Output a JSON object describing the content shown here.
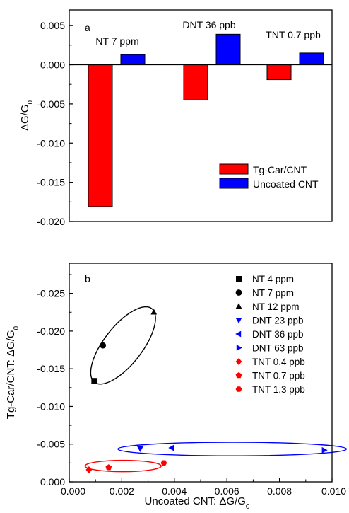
{
  "chart_data": [
    {
      "type": "bar",
      "panel_label": "a",
      "categories": [
        "NT 7 ppm",
        "DNT 36 ppb",
        "TNT 0.7 ppb"
      ],
      "series": [
        {
          "name": "Tg-Car/CNT",
          "color": "#ff0000",
          "values": [
            -0.0181,
            -0.0045,
            -0.0019
          ]
        },
        {
          "name": "Uncoated CNT",
          "color": "#0000ff",
          "values": [
            0.0013,
            0.0039,
            0.0015
          ]
        }
      ],
      "ylabel": "ΔG/G",
      "ylabel_sub": "0",
      "ylim": [
        -0.02,
        0.007
      ],
      "yticks": [
        0.005,
        0.0,
        -0.005,
        -0.01,
        -0.015,
        -0.02
      ],
      "ytick_labels": [
        "0.005",
        "0.000",
        "-0.005",
        "-0.010",
        "-0.015",
        "-0.020"
      ],
      "legend_placement": "bottom-right"
    },
    {
      "type": "scatter",
      "panel_label": "b",
      "xlabel": "Uncoated CNT: ΔG/G",
      "xlabel_sub": "0",
      "ylabel": "Tg-Car/CNT: ΔG/G",
      "ylabel_sub": "0",
      "xlim": [
        0.0,
        0.01
      ],
      "ylim": [
        0.0,
        -0.029
      ],
      "y_inverted": true,
      "xticks": [
        0.0,
        0.002,
        0.004,
        0.006,
        0.008,
        0.01
      ],
      "xtick_labels": [
        "0.000",
        "0.002",
        "0.004",
        "0.006",
        "0.008",
        "0.010"
      ],
      "yticks": [
        0.0,
        -0.005,
        -0.01,
        -0.015,
        -0.02,
        -0.025
      ],
      "ytick_labels": [
        "0.000",
        "-0.005",
        "-0.010",
        "-0.015",
        "-0.020",
        "-0.025"
      ],
      "legend_placement": "top-right",
      "series": [
        {
          "name": "NT 4 ppm",
          "color": "#000000",
          "marker": "square",
          "x": [
            0.00095
          ],
          "y": [
            -0.0134
          ]
        },
        {
          "name": "NT 7 ppm",
          "color": "#000000",
          "marker": "circle",
          "x": [
            0.00128
          ],
          "y": [
            -0.0181
          ]
        },
        {
          "name": "NT 12 ppm",
          "color": "#000000",
          "marker": "triangle-up",
          "x": [
            0.00322
          ],
          "y": [
            -0.0225
          ]
        },
        {
          "name": "DNT 23 ppb",
          "color": "#0000ff",
          "marker": "triangle-down",
          "x": [
            0.0027
          ],
          "y": [
            -0.0044
          ]
        },
        {
          "name": "DNT 36 ppb",
          "color": "#0000ff",
          "marker": "triangle-left",
          "x": [
            0.0039
          ],
          "y": [
            -0.0045
          ]
        },
        {
          "name": "DNT 63 ppb",
          "color": "#0000ff",
          "marker": "triangle-right",
          "x": [
            0.0097
          ],
          "y": [
            -0.0042
          ]
        },
        {
          "name": "TNT 0.4 ppb",
          "color": "#ff0000",
          "marker": "diamond",
          "x": [
            0.00075
          ],
          "y": [
            -0.0016
          ]
        },
        {
          "name": "TNT 0.7 ppb",
          "color": "#ff0000",
          "marker": "pentagon",
          "x": [
            0.0015
          ],
          "y": [
            -0.0019
          ]
        },
        {
          "name": "TNT 1.3 ppb",
          "color": "#ff0000",
          "marker": "hexagon",
          "x": [
            0.0036
          ],
          "y": [
            -0.0025
          ]
        }
      ],
      "ellipses": [
        {
          "group": "NT",
          "color": "#000000",
          "cx": 0.00205,
          "cy": -0.0181,
          "rx": 0.00125,
          "ry": -0.0065
        },
        {
          "group": "DNT",
          "color": "#0000ff",
          "cx": 0.0062,
          "cy": -0.00435,
          "rx": 0.00435,
          "ry": -0.0009
        },
        {
          "group": "TNT",
          "color": "#ff0000",
          "cx": 0.00205,
          "cy": -0.0021,
          "rx": 0.00145,
          "ry": -0.00075
        }
      ]
    }
  ]
}
